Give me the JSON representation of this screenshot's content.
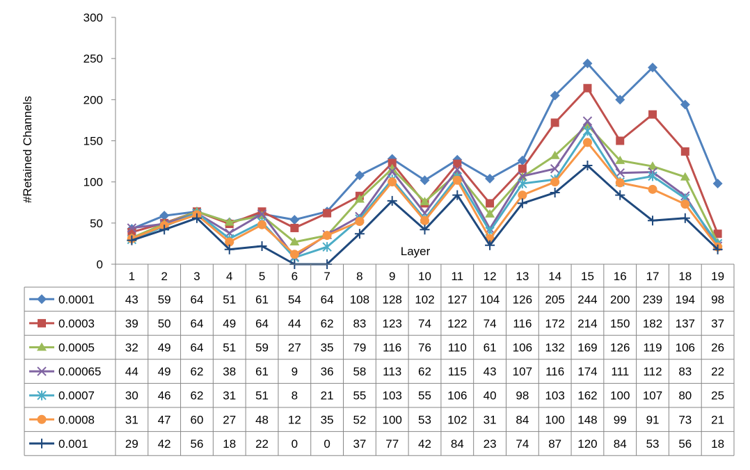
{
  "chart_data": {
    "type": "line",
    "title": "",
    "ylabel": "#Retained Channels",
    "xlabel": "Layer",
    "ylim": [
      0,
      300
    ],
    "yticks": [
      0,
      50,
      100,
      150,
      200,
      250,
      300
    ],
    "grid": false,
    "legend": "data table rows",
    "categories": [
      "1",
      "2",
      "3",
      "4",
      "5",
      "6",
      "7",
      "8",
      "9",
      "10",
      "11",
      "12",
      "13",
      "14",
      "15",
      "16",
      "17",
      "18",
      "19"
    ],
    "series": [
      {
        "name": "0.0001",
        "color": "#4F81BD",
        "marker": "diamond",
        "values": [
          43,
          59,
          64,
          51,
          61,
          54,
          64,
          108,
          128,
          102,
          127,
          104,
          126,
          205,
          244,
          200,
          239,
          194,
          98
        ]
      },
      {
        "name": "0.0003",
        "color": "#C0504D",
        "marker": "square",
        "values": [
          39,
          50,
          64,
          49,
          64,
          44,
          62,
          83,
          123,
          74,
          122,
          74,
          116,
          172,
          214,
          150,
          182,
          137,
          37
        ]
      },
      {
        "name": "0.0005",
        "color": "#9BBB59",
        "marker": "triangle",
        "values": [
          32,
          49,
          64,
          51,
          59,
          27,
          35,
          79,
          116,
          76,
          110,
          61,
          106,
          132,
          169,
          126,
          119,
          106,
          26
        ]
      },
      {
        "name": "0.00065",
        "color": "#8064A2",
        "marker": "x",
        "values": [
          44,
          49,
          62,
          38,
          61,
          9,
          36,
          58,
          113,
          62,
          115,
          43,
          107,
          116,
          174,
          111,
          112,
          83,
          22
        ]
      },
      {
        "name": "0.0007",
        "color": "#4BACC6",
        "marker": "star",
        "values": [
          30,
          46,
          62,
          31,
          51,
          8,
          21,
          55,
          103,
          55,
          106,
          40,
          98,
          103,
          162,
          100,
          107,
          80,
          25
        ]
      },
      {
        "name": "0.0008",
        "color": "#F79646",
        "marker": "circle",
        "values": [
          31,
          47,
          60,
          27,
          48,
          12,
          35,
          52,
          100,
          53,
          102,
          31,
          84,
          100,
          148,
          99,
          91,
          73,
          21
        ]
      },
      {
        "name": "0.001",
        "color": "#1F497D",
        "marker": "plus",
        "values": [
          29,
          42,
          56,
          18,
          22,
          0,
          0,
          37,
          77,
          42,
          84,
          23,
          74,
          87,
          120,
          84,
          53,
          56,
          18
        ]
      }
    ]
  }
}
